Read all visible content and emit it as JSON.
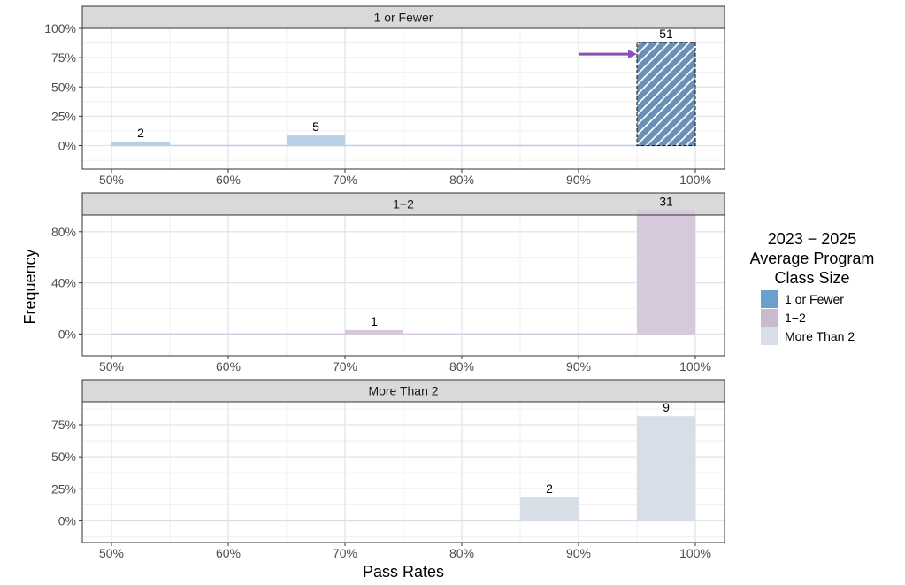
{
  "chart_data": {
    "type": "bar",
    "subtype": "faceted histogram",
    "xlabel": "Pass Rates",
    "ylabel": "Frequency",
    "x_ticks": [
      "50%",
      "60%",
      "70%",
      "80%",
      "90%",
      "100%"
    ],
    "xlim": [
      47.5,
      102.5
    ],
    "bin_width": 5,
    "grid": true,
    "legend": {
      "title": [
        "2023 − 2025",
        "Average Program",
        "Class Size"
      ],
      "placement": "right",
      "entries": [
        {
          "label": "1 or Fewer",
          "color": "#6a9fd0"
        },
        {
          "label": "1−2",
          "color": "#c9bad0"
        },
        {
          "label": "More Than 2",
          "color": "#d8dee7"
        }
      ]
    },
    "panels": [
      {
        "title": "1 or Fewer",
        "fill": "#b7d0e7",
        "ylim": [
          -0.2,
          1.0
        ],
        "y_ticks": [
          {
            "v": 0,
            "label": "0%"
          },
          {
            "v": 0.25,
            "label": "25%"
          },
          {
            "v": 0.5,
            "label": "50%"
          },
          {
            "v": 0.75,
            "label": "75%"
          },
          {
            "v": 1.0,
            "label": "100%"
          }
        ],
        "bars": [
          {
            "x0": 50,
            "x1": 55,
            "y": 0.035,
            "label": "2"
          },
          {
            "x0": 65,
            "x1": 70,
            "y": 0.086,
            "label": "5"
          },
          {
            "x0": 95,
            "x1": 100,
            "y": 0.879,
            "label": "51",
            "highlight": true
          }
        ],
        "highlight_fill": "#6a90b8",
        "arrow": {
          "from_x": 90,
          "to_x": 95,
          "y": 0.78,
          "color": "#8e4fb5"
        }
      },
      {
        "title": "1−2",
        "fill": "#d5c9db",
        "ylim": [
          -0.17,
          0.93
        ],
        "y_ticks": [
          {
            "v": 0,
            "label": "0%"
          },
          {
            "v": 0.4,
            "label": "40%"
          },
          {
            "v": 0.8,
            "label": "80%"
          }
        ],
        "bars": [
          {
            "x0": 70,
            "x1": 75,
            "y": 0.031,
            "label": "1"
          },
          {
            "x0": 95,
            "x1": 100,
            "y": 0.969,
            "label": "31"
          }
        ]
      },
      {
        "title": "More Than 2",
        "fill": "#d8dee7",
        "ylim": [
          -0.17,
          0.93
        ],
        "y_ticks": [
          {
            "v": 0,
            "label": "0%"
          },
          {
            "v": 0.25,
            "label": "25%"
          },
          {
            "v": 0.5,
            "label": "50%"
          },
          {
            "v": 0.75,
            "label": "75%"
          }
        ],
        "bars": [
          {
            "x0": 85,
            "x1": 90,
            "y": 0.182,
            "label": "2"
          },
          {
            "x0": 95,
            "x1": 100,
            "y": 0.818,
            "label": "9"
          }
        ]
      }
    ]
  }
}
